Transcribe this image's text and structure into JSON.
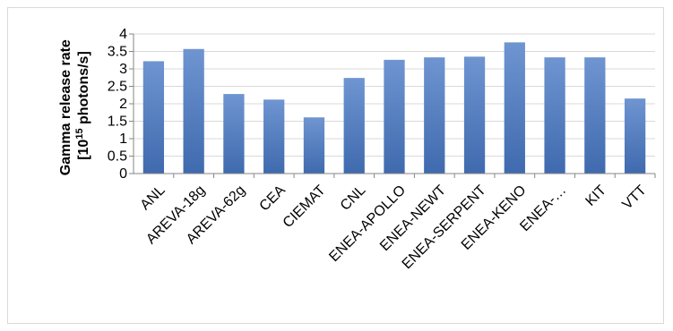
{
  "chart_data": {
    "type": "bar",
    "title": "",
    "xlabel": "",
    "ylabel": "Gamma release rate",
    "ylabel_units": {
      "prefix": "[10",
      "superscript": "15",
      "suffix": " photons/s]"
    },
    "categories": [
      "ANL",
      "AREVA-18g",
      "AREVA-62g",
      "CEA",
      "CIEMAT",
      "CNL",
      "ENEA-APOLLO",
      "ENEA-NEWT",
      "ENEA-SERPENT",
      "ENEA-KENO",
      "ENEA-…",
      "KIT",
      "VTT"
    ],
    "values": [
      3.22,
      3.57,
      2.28,
      2.12,
      1.61,
      2.74,
      3.26,
      3.33,
      3.35,
      3.76,
      3.33,
      3.33,
      2.15
    ],
    "ylim": [
      0,
      4
    ],
    "yticks": [
      0,
      0.5,
      1,
      1.5,
      2,
      2.5,
      3,
      3.5,
      4
    ],
    "ytick_labels": [
      "0",
      "0.5",
      "1",
      "1.5",
      "2",
      "2.5",
      "3",
      "3.5",
      "4"
    ],
    "grid": true,
    "legend": false,
    "colors": {
      "bar_top": "#6f95d1",
      "bar_bottom": "#3f6aae",
      "grid": "#d9d9d9",
      "axis": "#868686"
    }
  }
}
